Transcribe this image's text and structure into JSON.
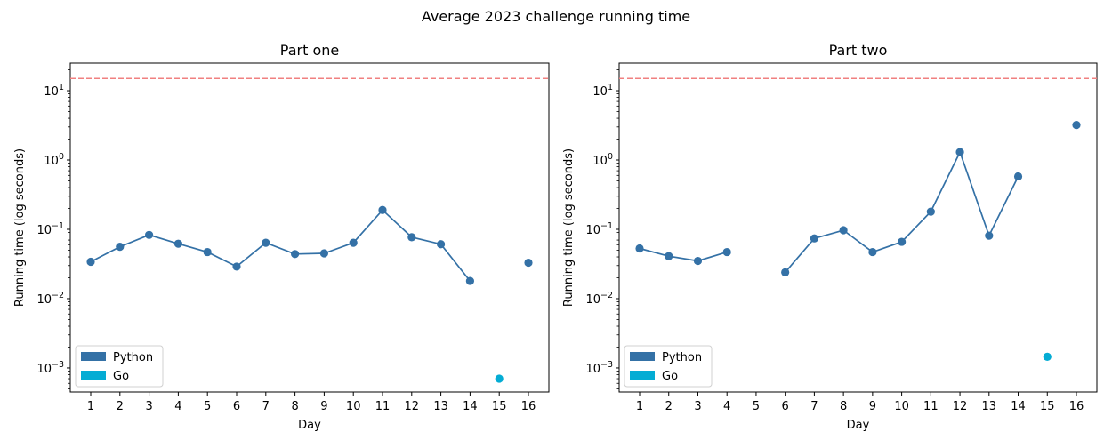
{
  "figure_title": "Average 2023 challenge running time",
  "chart_data": [
    {
      "type": "line",
      "title": "Part one",
      "xlabel": "Day",
      "ylabel": "Running time (log seconds)",
      "y_scale": "log",
      "ylim": [
        0.00045,
        25
      ],
      "x_ticks": [
        "1",
        "2",
        "3",
        "4",
        "5",
        "6",
        "7",
        "8",
        "9",
        "10",
        "11",
        "12",
        "13",
        "14",
        "15",
        "16"
      ],
      "y_ticks": [
        "10^-3",
        "10^-2",
        "10^-1",
        "10^0",
        "10^1"
      ],
      "reference_line": {
        "y": 15,
        "style": "dashed",
        "color": "#f08080"
      },
      "legend": {
        "placement": "lower-left",
        "entries": [
          {
            "label": "Python",
            "color": "#3471a6"
          },
          {
            "label": "Go",
            "color": "#04acd4"
          }
        ]
      },
      "series": [
        {
          "name": "Python",
          "color": "#3471a6",
          "points": [
            [
              1,
              0.034
            ],
            [
              2,
              0.056
            ],
            [
              3,
              0.083
            ],
            [
              4,
              0.062
            ],
            [
              5,
              0.047
            ],
            [
              6,
              0.029
            ],
            [
              7,
              0.064
            ],
            [
              8,
              0.044
            ],
            [
              9,
              0.045
            ],
            [
              10,
              0.064
            ],
            [
              11,
              0.19
            ],
            [
              12,
              0.077
            ],
            [
              13,
              0.061
            ],
            [
              14,
              0.018
            ],
            [
              16,
              0.033
            ]
          ],
          "connected_until": 14
        },
        {
          "name": "Go",
          "color": "#04acd4",
          "points": [
            [
              15,
              0.0007
            ]
          ],
          "connected_until": null
        }
      ]
    },
    {
      "type": "line",
      "title": "Part two",
      "xlabel": "Day",
      "ylabel": "Running time (log seconds)",
      "y_scale": "log",
      "ylim": [
        0.00045,
        25
      ],
      "x_ticks": [
        "1",
        "2",
        "3",
        "4",
        "5",
        "6",
        "7",
        "8",
        "9",
        "10",
        "11",
        "12",
        "13",
        "14",
        "15",
        "16"
      ],
      "y_ticks": [
        "10^-3",
        "10^-2",
        "10^-1",
        "10^0",
        "10^1"
      ],
      "reference_line": {
        "y": 15,
        "style": "dashed",
        "color": "#f08080"
      },
      "legend": {
        "placement": "lower-left",
        "entries": [
          {
            "label": "Python",
            "color": "#3471a6"
          },
          {
            "label": "Go",
            "color": "#04acd4"
          }
        ]
      },
      "series": [
        {
          "name": "Python",
          "color": "#3471a6",
          "segments": [
            [
              [
                1,
                0.053
              ],
              [
                2,
                0.041
              ],
              [
                3,
                0.035
              ],
              [
                4,
                0.047
              ]
            ],
            [
              [
                6,
                0.024
              ],
              [
                7,
                0.074
              ],
              [
                8,
                0.097
              ],
              [
                9,
                0.047
              ],
              [
                10,
                0.066
              ],
              [
                11,
                0.18
              ],
              [
                12,
                1.3
              ],
              [
                13,
                0.081
              ],
              [
                14,
                0.58
              ]
            ],
            [
              [
                16,
                3.2
              ]
            ]
          ]
        },
        {
          "name": "Go",
          "color": "#04acd4",
          "segments": [
            [
              [
                15,
                0.00145
              ]
            ]
          ]
        }
      ]
    }
  ]
}
